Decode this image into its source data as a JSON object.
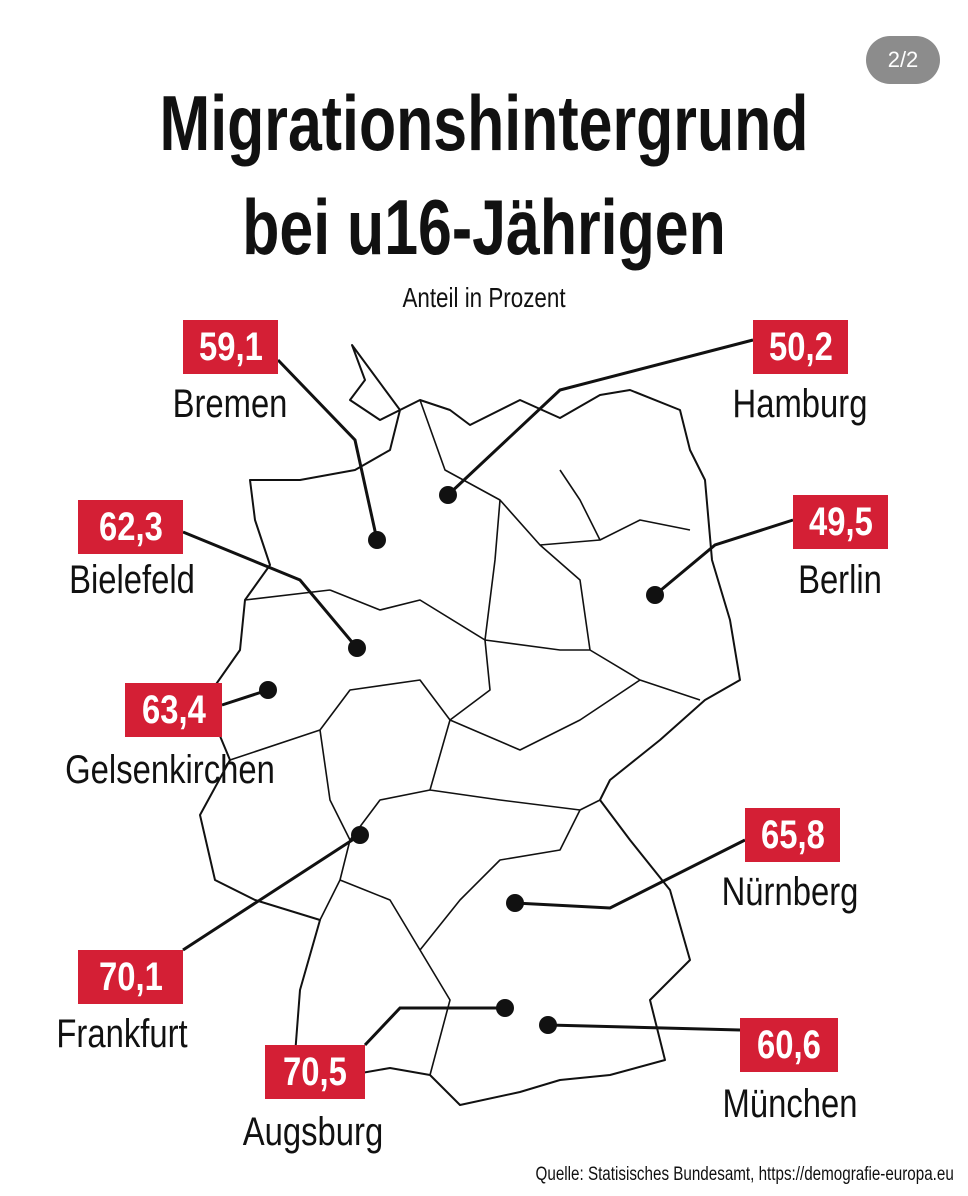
{
  "page_indicator": "2/2",
  "title_lines": [
    "Migrationshintergrund",
    "bei u16-Jährigen"
  ],
  "subtitle": "Anteil in Prozent",
  "cities": [
    {
      "name": "Bremen",
      "value": "59,1"
    },
    {
      "name": "Hamburg",
      "value": "50,2"
    },
    {
      "name": "Bielefeld",
      "value": "62,3"
    },
    {
      "name": "Berlin",
      "value": "49,5"
    },
    {
      "name": "Gelsenkirchen",
      "value": "63,4"
    },
    {
      "name": "Nürnberg",
      "value": "65,8"
    },
    {
      "name": "Frankfurt",
      "value": "70,1"
    },
    {
      "name": "Augsburg",
      "value": "70,5"
    },
    {
      "name": "München",
      "value": "60,6"
    }
  ],
  "source": "Quelle: Statisisches Bundesamt, https://demografie-europa.eu"
}
